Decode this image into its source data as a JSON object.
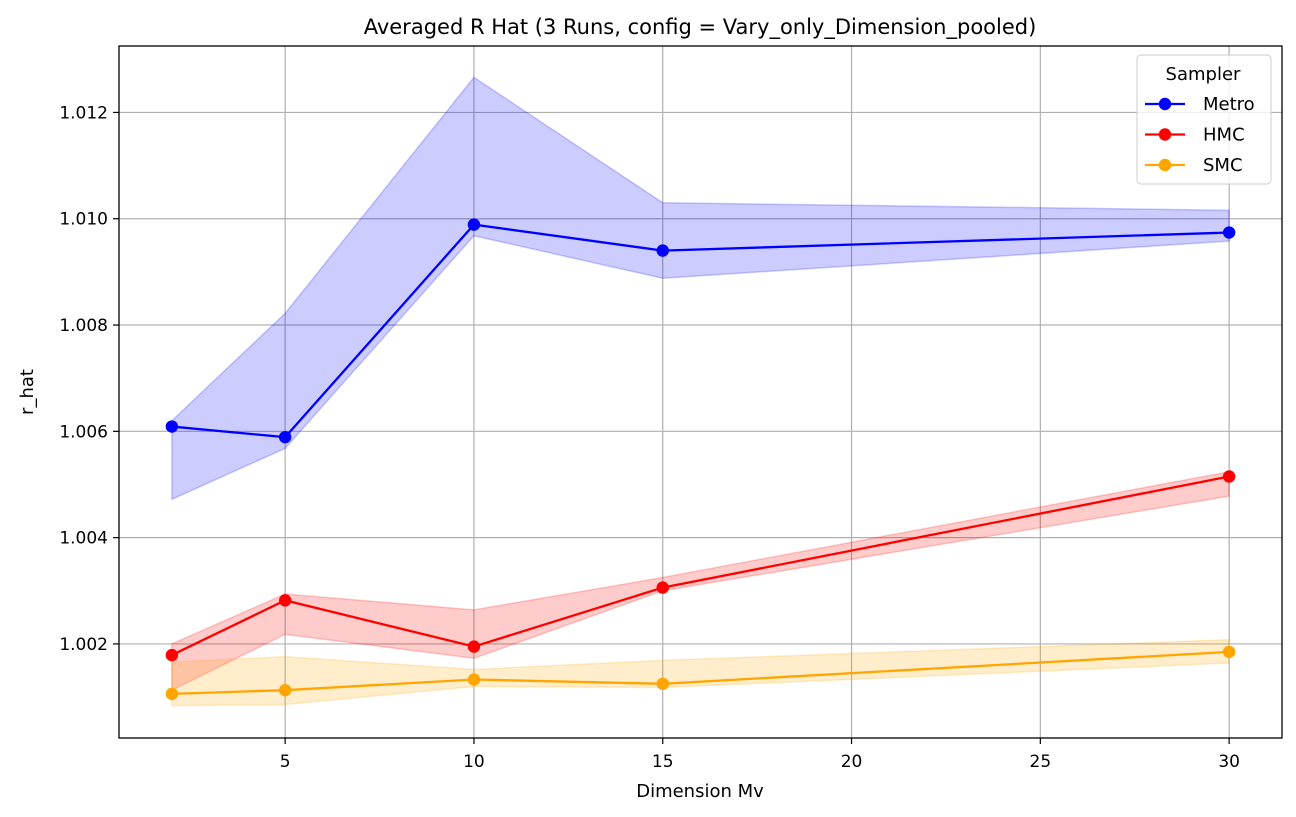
{
  "chart_data": {
    "type": "line",
    "title": "Averaged R Hat (3 Runs, config = Vary_only_Dimension_pooled)",
    "xlabel": "Dimension Mv",
    "ylabel": "r_hat",
    "xlim": [
      0.6,
      31.4
    ],
    "ylim": [
      1.00023,
      1.01325
    ],
    "x_ticks": [
      5,
      10,
      15,
      20,
      25,
      30
    ],
    "y_ticks": [
      1.002,
      1.004,
      1.006,
      1.008,
      1.01,
      1.012
    ],
    "x_tick_labels": [
      "5",
      "10",
      "15",
      "20",
      "25",
      "30"
    ],
    "y_tick_labels": [
      "1.002",
      "1.004",
      "1.006",
      "1.008",
      "1.010",
      "1.012"
    ],
    "grid": true,
    "legend": {
      "title": "Sampler",
      "placement": "top-right"
    },
    "x": [
      2,
      5,
      10,
      15,
      30
    ],
    "series": [
      {
        "name": "Metro",
        "color": "#0000ff",
        "band_color": "#0000ff",
        "values": [
          1.00609,
          1.00589,
          1.00989,
          1.0094,
          1.00974
        ],
        "lower": [
          1.00472,
          1.00568,
          1.00968,
          1.00888,
          1.00958
        ],
        "upper": [
          1.0062,
          1.00822,
          1.01266,
          1.0103,
          1.01016
        ]
      },
      {
        "name": "HMC",
        "color": "#ff0000",
        "band_color": "#ff0000",
        "values": [
          1.00179,
          1.00282,
          1.00195,
          1.00306,
          1.00515
        ],
        "lower": [
          1.00113,
          1.00218,
          1.00173,
          1.003,
          1.00478
        ],
        "upper": [
          1.002,
          1.00294,
          1.00264,
          1.00325,
          1.00524
        ]
      },
      {
        "name": "SMC",
        "color": "#ffa500",
        "band_color": "#ffa500",
        "values": [
          1.00106,
          1.00113,
          1.00133,
          1.00125,
          1.00185
        ],
        "lower": [
          1.00084,
          1.00086,
          1.0012,
          1.00118,
          1.00164
        ],
        "upper": [
          1.00166,
          1.00176,
          1.00152,
          1.00169,
          1.00208
        ]
      }
    ]
  }
}
